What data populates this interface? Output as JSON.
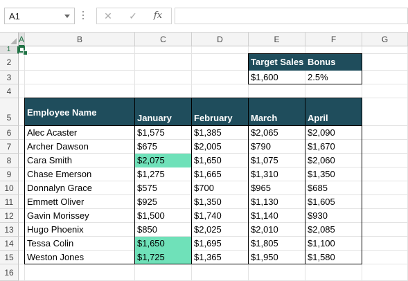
{
  "formula_bar": {
    "name_box": "A1",
    "cancel_icon": "✕",
    "enter_icon": "✓",
    "fx_label": "fx",
    "formula": ""
  },
  "columns": [
    "A",
    "B",
    "C",
    "D",
    "E",
    "F",
    "G"
  ],
  "rows": [
    "1",
    "2",
    "3",
    "4",
    "5",
    "6",
    "7",
    "8",
    "9",
    "10",
    "11",
    "12",
    "13",
    "14",
    "15",
    "16"
  ],
  "colors": {
    "header_fill": "#1f4d5c",
    "highlight_fill": "#6fe1b9",
    "selection": "#217346"
  },
  "lookup": {
    "headers": [
      "Target Sales",
      "Bonus"
    ],
    "values": [
      "$1,600",
      "2.5%"
    ]
  },
  "table": {
    "headers": [
      "Employee Name",
      "January",
      "February",
      "March",
      "April"
    ],
    "rows": [
      [
        "Alec Acaster",
        "$1,575",
        "$1,385",
        "$2,065",
        "$2,090"
      ],
      [
        "Archer Dawson",
        "$675",
        "$2,005",
        "$790",
        "$1,670"
      ],
      [
        "Cara Smith",
        "$2,075",
        "$1,650",
        "$1,075",
        "$2,060"
      ],
      [
        "Chase Emerson",
        "$1,275",
        "$1,665",
        "$1,310",
        "$1,350"
      ],
      [
        "Donnalyn Grace",
        "$575",
        "$700",
        "$965",
        "$685"
      ],
      [
        "Emmett Oliver",
        "$925",
        "$1,350",
        "$1,130",
        "$1,605"
      ],
      [
        "Gavin Morissey",
        "$1,500",
        "$1,740",
        "$1,140",
        "$930"
      ],
      [
        "Hugo Phoenix",
        "$850",
        "$2,025",
        "$2,010",
        "$2,085"
      ],
      [
        "Tessa Colin",
        "$1,650",
        "$1,695",
        "$1,805",
        "$1,100"
      ],
      [
        "Weston Jones",
        "$1,725",
        "$1,365",
        "$1,950",
        "$1,580"
      ]
    ],
    "highlighted_cells": [
      [
        2,
        1
      ],
      [
        8,
        1
      ],
      [
        9,
        1
      ]
    ]
  }
}
